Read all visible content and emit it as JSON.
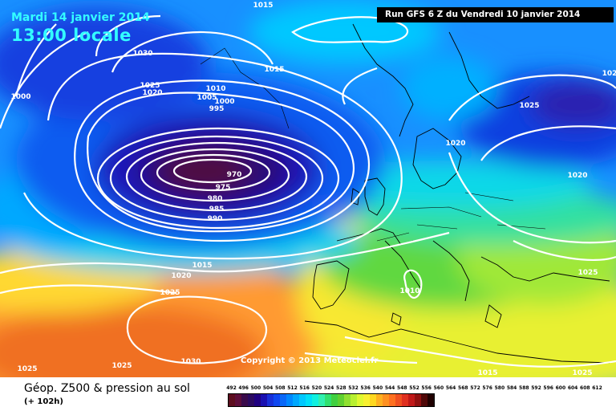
{
  "header": {
    "date_text": "Mardi 14 janvier 2014",
    "time_text": "13:00 locale",
    "run_text": "Run GFS 6 Z du Vendredi 10 janvier 2014",
    "copyright_text": "Copyright © 2013 Meteociel.fr"
  },
  "legend": {
    "title": "Géop. Z500 & pression au sol",
    "subtitle": "(+ 102h)",
    "scale_labels": [
      "492",
      "496",
      "500",
      "504",
      "508",
      "512",
      "516",
      "520",
      "524",
      "528",
      "532",
      "536",
      "540",
      "544",
      "548",
      "552",
      "556",
      "560",
      "564",
      "568",
      "572",
      "576",
      "580",
      "584",
      "588",
      "592",
      "596",
      "600",
      "604",
      "608",
      "612"
    ],
    "scale_colors": [
      "#5c0d1e",
      "#5c0d3a",
      "#3a0a4a",
      "#2b0a60",
      "#200080",
      "#1a10b0",
      "#1830d8",
      "#1048f0",
      "#0a68f8",
      "#0088ff",
      "#00a8ff",
      "#00c8ff",
      "#00e0f8",
      "#10f0e0",
      "#30f0b0",
      "#30e070",
      "#40d040",
      "#60d030",
      "#90e030",
      "#b8f030",
      "#e0f830",
      "#f8f030",
      "#ffd820",
      "#ffb020",
      "#ff9020",
      "#ff7020",
      "#f05020",
      "#e03020",
      "#c01818",
      "#901010",
      "#500808",
      "#200000"
    ]
  },
  "isobars": [
    {
      "label": "1015"
    },
    {
      "label": "1030"
    },
    {
      "label": "1025"
    },
    {
      "label": "1020"
    },
    {
      "label": "1000"
    },
    {
      "label": "1015"
    },
    {
      "label": "1010"
    },
    {
      "label": "1005"
    },
    {
      "label": "1000"
    },
    {
      "label": "995"
    },
    {
      "label": "970"
    },
    {
      "label": "975"
    },
    {
      "label": "980"
    },
    {
      "label": "985"
    },
    {
      "label": "990"
    },
    {
      "label": "1025"
    },
    {
      "label": "1020"
    },
    {
      "label": "1020"
    },
    {
      "label": "1015"
    },
    {
      "label": "1020"
    },
    {
      "label": "1025"
    },
    {
      "label": "1010"
    },
    {
      "label": "1025"
    },
    {
      "label": "1030"
    },
    {
      "label": "1025"
    },
    {
      "label": "1025"
    },
    {
      "label": "1015"
    },
    {
      "label": "1025"
    },
    {
      "label": "102"
    }
  ],
  "colors": {
    "low_core": "#3a0a2e",
    "atlantic_blue": "#1048f0",
    "azores_high": "#ff9020",
    "europe_green": "#40d040",
    "isobar_line": "#ffffff",
    "coastline": "#000000"
  }
}
